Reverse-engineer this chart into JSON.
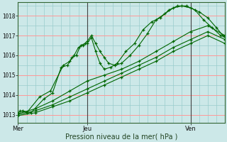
{
  "background_color": "#cce8e8",
  "plot_bg_color": "#cce8e8",
  "grid_color_major": "#ff9999",
  "grid_color_minor": "#99cccc",
  "line_color": "#006600",
  "xlabel": "Pression niveau de la mer( hPa )",
  "yticks": [
    1013,
    1014,
    1015,
    1016,
    1017,
    1018
  ],
  "ylim": [
    1012.6,
    1018.7
  ],
  "xlim": [
    0,
    48
  ],
  "day_ticks": [
    0,
    16,
    32,
    48
  ],
  "day_labels": [
    "Mer",
    "Jeu",
    "Ven",
    ""
  ],
  "series": [
    [
      0.0,
      1013.1,
      1.0,
      1013.2,
      3.0,
      1013.1,
      6.0,
      1013.8,
      8.0,
      1014.1,
      10.0,
      1015.4,
      11.5,
      1015.5,
      12.5,
      1015.9,
      13.5,
      1016.0,
      14.5,
      1016.5,
      15.5,
      1016.6,
      16.0,
      1016.7,
      17.0,
      1017.0,
      18.0,
      1016.6,
      19.0,
      1016.2,
      20.0,
      1015.9,
      21.0,
      1015.6,
      22.5,
      1015.5,
      24.0,
      1015.6,
      26.0,
      1016.0,
      28.0,
      1016.5,
      30.0,
      1017.1,
      32.0,
      1017.8,
      34.0,
      1018.1,
      36.0,
      1018.4,
      38.0,
      1018.5,
      40.0,
      1018.4,
      42.0,
      1018.2,
      44.0,
      1017.9,
      46.0,
      1017.4,
      47.5,
      1017.0
    ],
    [
      0.5,
      1013.2,
      2.0,
      1013.1,
      5.0,
      1013.9,
      7.5,
      1014.2,
      10.5,
      1015.5,
      12.0,
      1015.7,
      13.0,
      1016.0,
      14.0,
      1016.4,
      15.0,
      1016.5,
      16.0,
      1016.6,
      17.0,
      1016.9,
      18.0,
      1016.2,
      19.0,
      1015.6,
      20.0,
      1015.3,
      21.5,
      1015.4,
      23.0,
      1015.6,
      25.0,
      1016.2,
      27.0,
      1016.6,
      29.0,
      1017.3,
      31.0,
      1017.7,
      33.0,
      1017.9,
      35.0,
      1018.3,
      37.0,
      1018.5,
      39.0,
      1018.5,
      41.0,
      1018.3,
      43.0,
      1017.8,
      45.0,
      1017.4,
      47.0,
      1017.0,
      48.0,
      1016.95
    ],
    [
      0.0,
      1013.05,
      4.0,
      1013.3,
      8.0,
      1013.7,
      12.0,
      1014.2,
      16.0,
      1014.7,
      20.0,
      1015.0,
      24.0,
      1015.3,
      28.0,
      1015.7,
      32.0,
      1016.2,
      36.0,
      1016.7,
      40.0,
      1017.2,
      44.0,
      1017.5,
      48.0,
      1017.0
    ],
    [
      0.0,
      1013.0,
      4.0,
      1013.2,
      8.0,
      1013.5,
      12.0,
      1013.9,
      16.0,
      1014.3,
      20.0,
      1014.7,
      24.0,
      1015.1,
      28.0,
      1015.5,
      32.0,
      1015.9,
      36.0,
      1016.4,
      40.0,
      1016.8,
      44.0,
      1017.2,
      48.0,
      1016.8
    ],
    [
      0.0,
      1012.95,
      4.0,
      1013.1,
      8.0,
      1013.4,
      12.0,
      1013.7,
      16.0,
      1014.1,
      20.0,
      1014.5,
      24.0,
      1014.9,
      28.0,
      1015.3,
      32.0,
      1015.7,
      36.0,
      1016.2,
      40.0,
      1016.6,
      44.0,
      1017.0,
      48.0,
      1016.6
    ]
  ]
}
